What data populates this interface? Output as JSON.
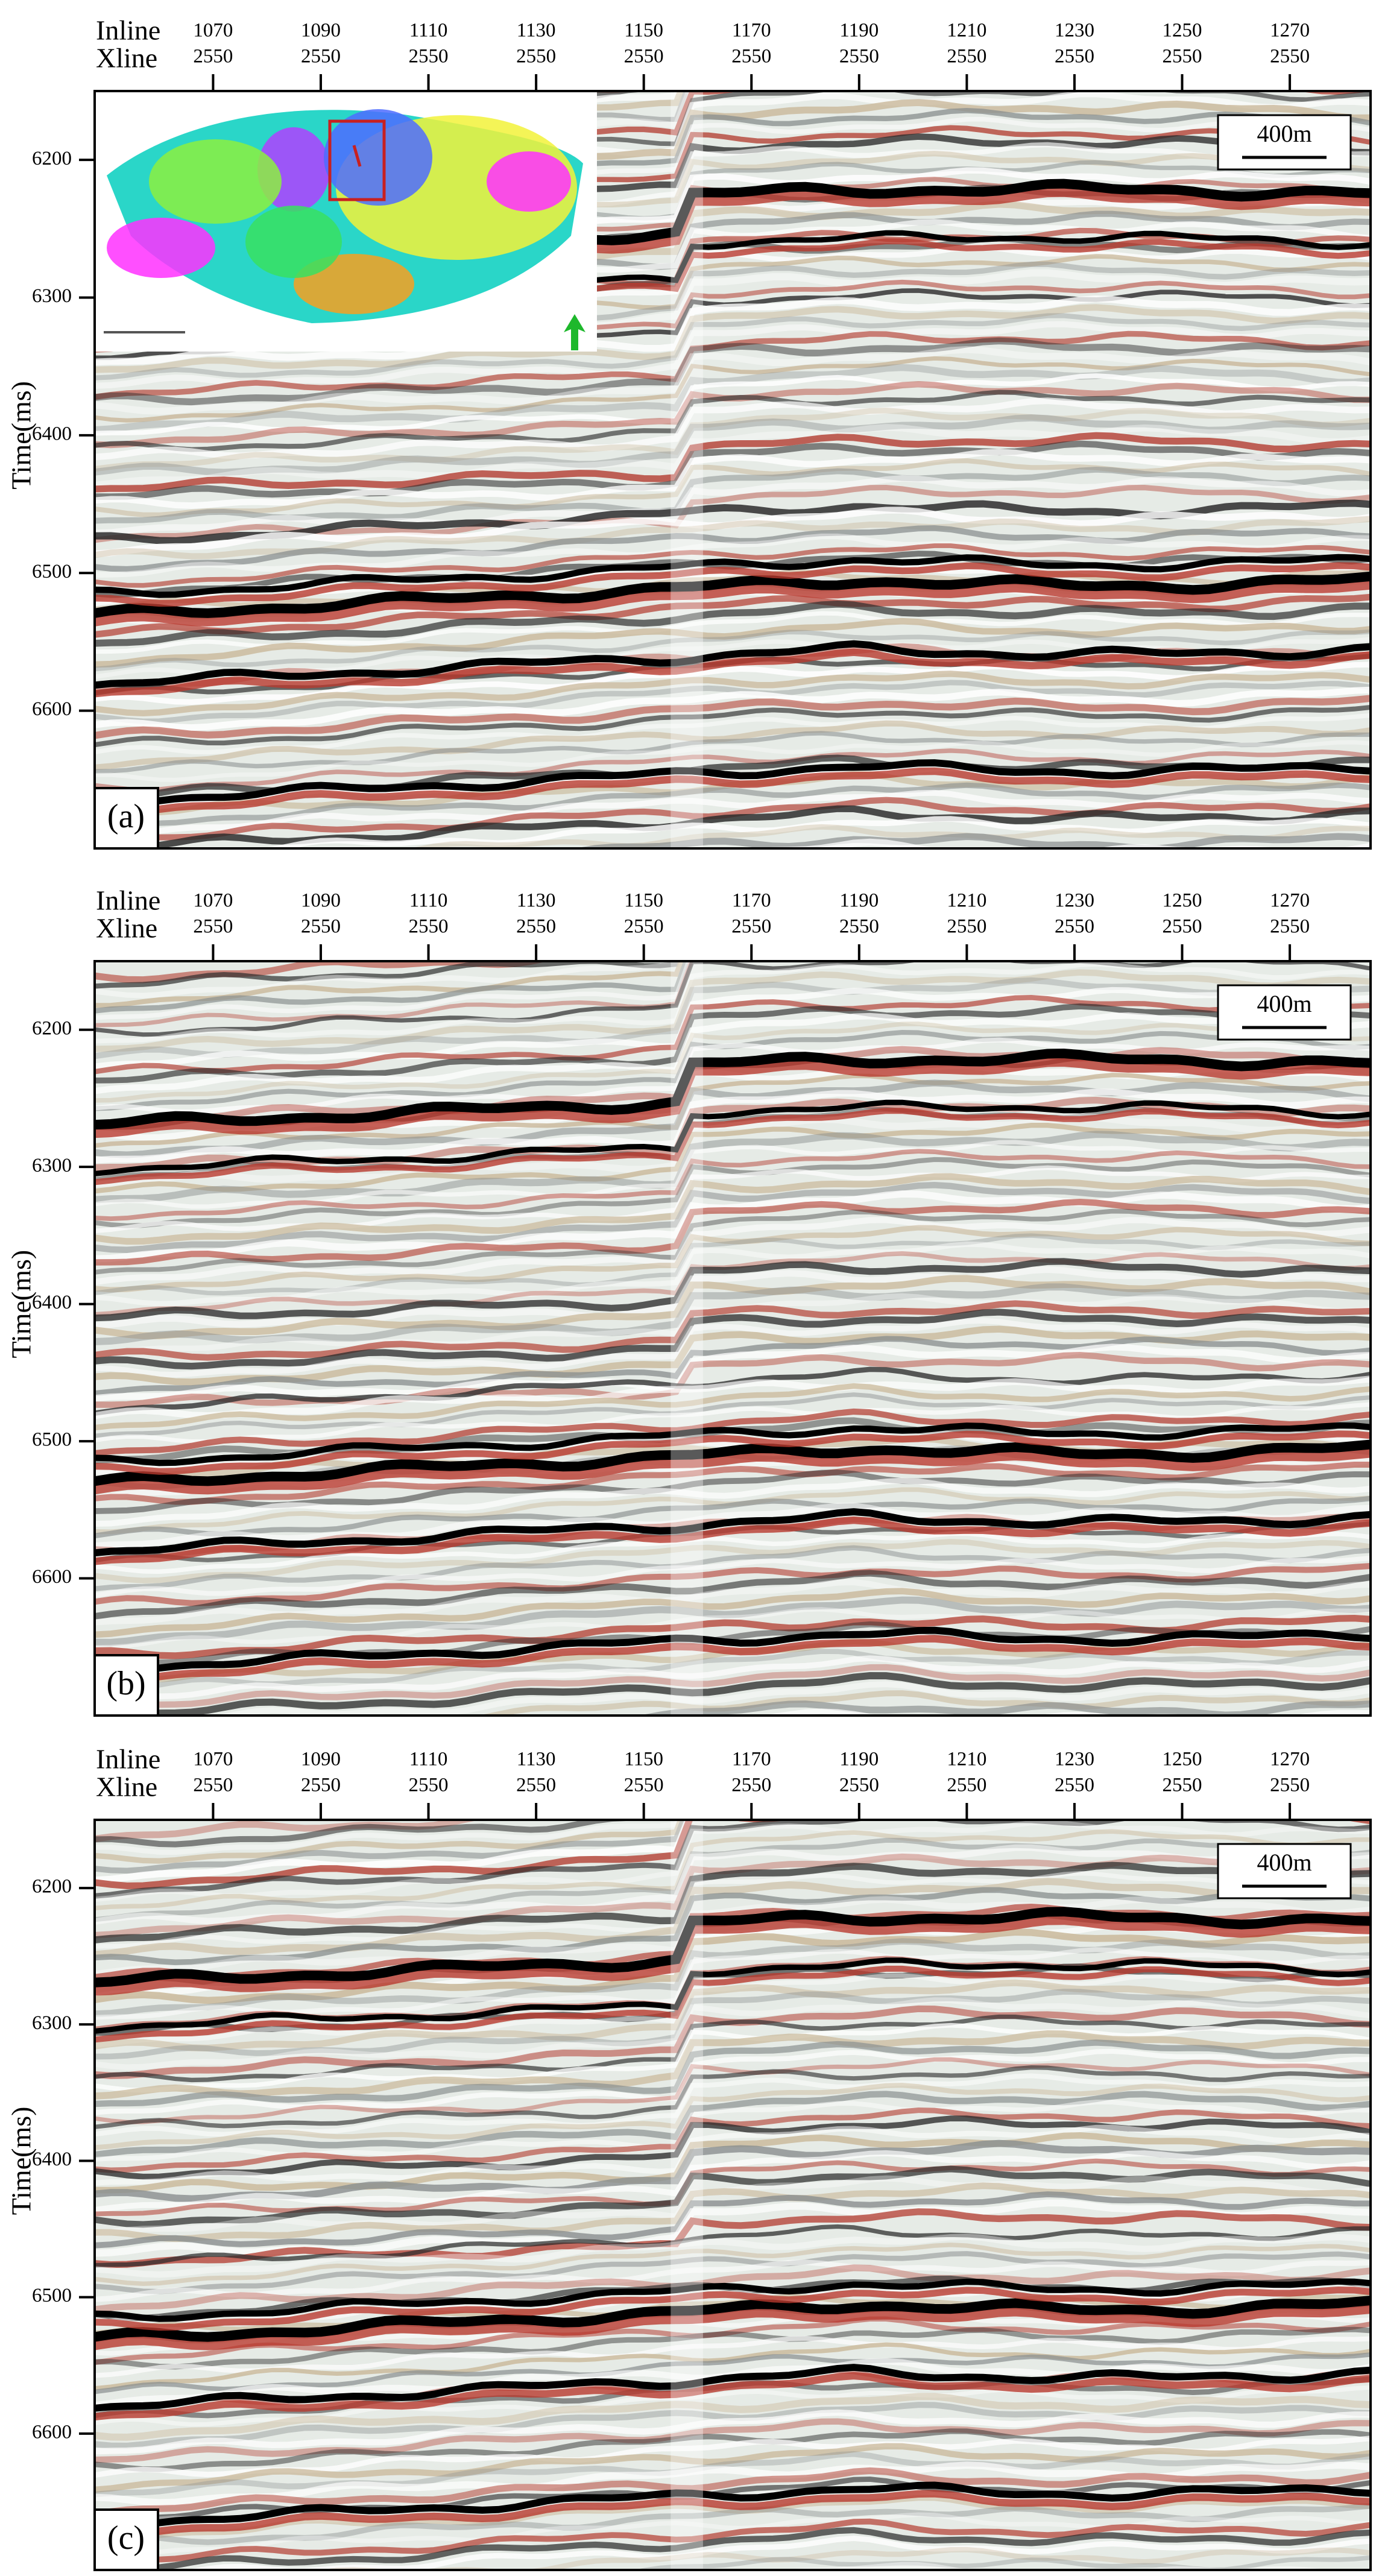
{
  "chart_data": [
    {
      "type": "seismic",
      "panel_label": "(a)",
      "inline_label": "Inline",
      "xline_label": "Xline",
      "ylabel": "Time(ms)",
      "scale_label": "400m",
      "inset_map": true,
      "xticks": [
        1070,
        1090,
        1110,
        1130,
        1150,
        1170,
        1190,
        1210,
        1230,
        1250,
        1270
      ],
      "xline_ticks": [
        2550,
        2550,
        2550,
        2550,
        2550,
        2550,
        2550,
        2550,
        2550,
        2550,
        2550
      ],
      "xlim": [
        1048,
        1285
      ],
      "yticks": [
        6200,
        6300,
        6400,
        6500,
        6600
      ],
      "ylim": [
        6700,
        6150
      ]
    },
    {
      "type": "seismic",
      "panel_label": "(b)",
      "inline_label": "Inline",
      "xline_label": "Xline",
      "ylabel": "Time(ms)",
      "scale_label": "400m",
      "inset_map": false,
      "xticks": [
        1070,
        1090,
        1110,
        1130,
        1150,
        1170,
        1190,
        1210,
        1230,
        1250,
        1270
      ],
      "xline_ticks": [
        2550,
        2550,
        2550,
        2550,
        2550,
        2550,
        2550,
        2550,
        2550,
        2550,
        2550
      ],
      "xlim": [
        1048,
        1285
      ],
      "yticks": [
        6200,
        6300,
        6400,
        6500,
        6600
      ],
      "ylim": [
        6700,
        6150
      ]
    },
    {
      "type": "seismic",
      "panel_label": "(c)",
      "inline_label": "Inline",
      "xline_label": "Xline",
      "ylabel": "Time(ms)",
      "scale_label": "400m",
      "inset_map": false,
      "xticks": [
        1070,
        1090,
        1110,
        1130,
        1150,
        1170,
        1190,
        1210,
        1230,
        1250,
        1270
      ],
      "xline_ticks": [
        2550,
        2550,
        2550,
        2550,
        2550,
        2550,
        2550,
        2550,
        2550,
        2550,
        2550
      ],
      "xlim": [
        1048,
        1285
      ],
      "yticks": [
        6200,
        6300,
        6400,
        6500,
        6600
      ],
      "ylim": [
        6700,
        6150
      ]
    }
  ]
}
